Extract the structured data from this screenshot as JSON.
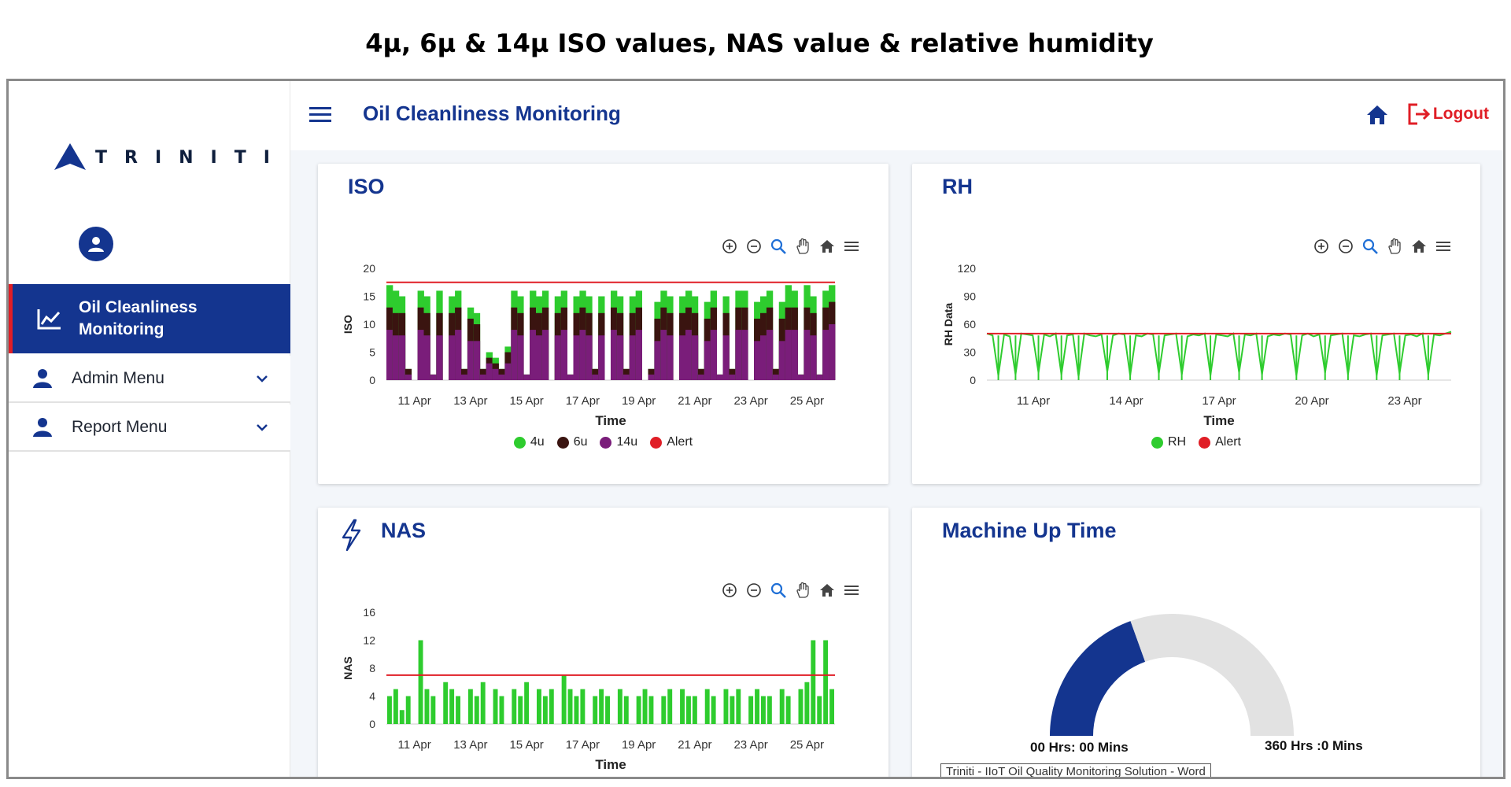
{
  "caption": "4µ, 6µ & 14µ ISO values, NAS value & relative humidity",
  "sidebar": {
    "logo_text": "TRINITI",
    "active_item": {
      "label": "Oil Cleanliness Monitoring",
      "icon": "line-chart-icon"
    },
    "items": [
      {
        "label": "Admin Menu",
        "icon": "person-icon"
      },
      {
        "label": "Report Menu",
        "icon": "person-icon"
      }
    ]
  },
  "header": {
    "title": "Oil Cleanliness Monitoring",
    "logout_label": "Logout"
  },
  "colors": {
    "brand_blue": "#14358f",
    "alert_red": "#e01e26",
    "green_4u": "#2ecc2e",
    "brown_6u": "#3a1410",
    "purple_14u": "#7a1d7a",
    "gauge_gray": "#e2e2e2"
  },
  "cards": {
    "iso": {
      "title": "ISO"
    },
    "rh": {
      "title": "RH"
    },
    "nas": {
      "title": "NAS"
    },
    "uptime": {
      "title": "Machine Up Time",
      "left_label": "00 Hrs: 00 Mins",
      "right_label": "360 Hrs :0 Mins",
      "tooltip": "Triniti - IIoT Oil Quality Monitoring Solution - Word",
      "fill_fraction": 0.39
    }
  },
  "chart_data": [
    {
      "id": "iso",
      "type": "area",
      "xlabel": "Time",
      "ylabel": "ISO",
      "x_tick_labels": [
        "11 Apr",
        "13 Apr",
        "15 Apr",
        "17 Apr",
        "19 Apr",
        "21 Apr",
        "23 Apr",
        "25 Apr"
      ],
      "y_tick_labels": [
        "0",
        "5",
        "10",
        "15",
        "20"
      ],
      "ylim": [
        0,
        20
      ],
      "legend": [
        "4u",
        "6u",
        "14u",
        "Alert"
      ],
      "series": [
        {
          "name": "4u",
          "color": "#2ecc2e",
          "values": [
            17,
            16,
            15,
            2,
            0,
            16,
            15,
            1,
            16,
            0,
            15,
            16,
            2,
            13,
            12,
            2,
            5,
            4,
            2,
            6,
            16,
            15,
            1,
            16,
            15,
            16,
            0,
            15,
            16,
            1,
            15,
            16,
            15,
            2,
            15,
            0,
            16,
            15,
            2,
            15,
            16,
            0,
            2,
            14,
            16,
            15,
            0,
            15,
            16,
            15,
            2,
            14,
            16,
            1,
            15,
            2,
            16,
            16,
            0,
            14,
            15,
            16,
            2,
            14,
            17,
            16,
            1,
            17,
            15,
            1,
            16,
            17
          ]
        },
        {
          "name": "6u",
          "color": "#3a1410",
          "values": [
            13,
            12,
            12,
            2,
            0,
            13,
            12,
            1,
            12,
            0,
            12,
            13,
            2,
            11,
            10,
            2,
            4,
            3,
            2,
            5,
            13,
            12,
            1,
            13,
            12,
            13,
            0,
            12,
            13,
            1,
            12,
            13,
            12,
            2,
            12,
            0,
            13,
            12,
            2,
            12,
            13,
            0,
            2,
            11,
            13,
            12,
            0,
            12,
            13,
            12,
            2,
            11,
            13,
            1,
            12,
            2,
            13,
            13,
            0,
            11,
            12,
            13,
            2,
            11,
            13,
            13,
            1,
            13,
            12,
            1,
            13,
            14
          ]
        },
        {
          "name": "14u",
          "color": "#7a1d7a",
          "values": [
            9,
            8,
            8,
            1,
            0,
            9,
            8,
            1,
            8,
            0,
            8,
            9,
            1,
            7,
            7,
            1,
            3,
            2,
            1,
            3,
            9,
            8,
            1,
            9,
            8,
            9,
            0,
            8,
            9,
            1,
            8,
            9,
            8,
            1,
            8,
            0,
            9,
            8,
            1,
            8,
            9,
            0,
            1,
            7,
            9,
            8,
            0,
            8,
            9,
            8,
            1,
            7,
            9,
            1,
            8,
            1,
            9,
            9,
            0,
            7,
            8,
            9,
            1,
            7,
            9,
            9,
            1,
            9,
            8,
            1,
            9,
            10
          ]
        },
        {
          "name": "Alert",
          "color": "#e01e26",
          "values": [
            17.5
          ]
        }
      ]
    },
    {
      "id": "rh",
      "type": "line",
      "xlabel": "Time",
      "ylabel": "RH Data",
      "x_tick_labels": [
        "11 Apr",
        "14 Apr",
        "17 Apr",
        "20 Apr",
        "23 Apr"
      ],
      "y_tick_labels": [
        "0",
        "30",
        "60",
        "90",
        "120"
      ],
      "ylim": [
        0,
        120
      ],
      "legend": [
        "RH",
        "Alert"
      ],
      "series": [
        {
          "name": "RH",
          "color": "#2ecc2e",
          "values": [
            50,
            48,
            5,
            49,
            47,
            6,
            50,
            49,
            48,
            8,
            49,
            47,
            50,
            6,
            48,
            49,
            4,
            50,
            48,
            47,
            49,
            9,
            48,
            50,
            49,
            5,
            48,
            47,
            50,
            49,
            7,
            48,
            49,
            50,
            6,
            47,
            49,
            48,
            50,
            5,
            49,
            48,
            47,
            50,
            8,
            49,
            48,
            50,
            6,
            47,
            49,
            48,
            50,
            49,
            5,
            48,
            50,
            47,
            49,
            8,
            48,
            49,
            50,
            6,
            48,
            47,
            49,
            50,
            5,
            48,
            49,
            50,
            7,
            48,
            49,
            47,
            50,
            6,
            49,
            48,
            50,
            52
          ]
        },
        {
          "name": "Alert",
          "color": "#e01e26",
          "values": [
            50
          ]
        }
      ]
    },
    {
      "id": "nas",
      "type": "bar",
      "xlabel": "Time",
      "ylabel": "NAS",
      "x_tick_labels": [
        "11 Apr",
        "13 Apr",
        "15 Apr",
        "17 Apr",
        "19 Apr",
        "21 Apr",
        "23 Apr",
        "25 Apr"
      ],
      "y_tick_labels": [
        "0",
        "4",
        "8",
        "12",
        "16"
      ],
      "ylim": [
        0,
        16
      ],
      "series": [
        {
          "name": "NAS",
          "color": "#2ecc2e",
          "values": [
            4,
            5,
            2,
            4,
            0,
            12,
            5,
            4,
            0,
            6,
            5,
            4,
            0,
            5,
            4,
            6,
            0,
            5,
            4,
            0,
            5,
            4,
            6,
            0,
            5,
            4,
            5,
            0,
            7,
            5,
            4,
            5,
            0,
            4,
            5,
            4,
            0,
            5,
            4,
            0,
            4,
            5,
            4,
            0,
            4,
            5,
            0,
            5,
            4,
            4,
            0,
            5,
            4,
            0,
            5,
            4,
            5,
            0,
            4,
            5,
            4,
            4,
            0,
            5,
            4,
            0,
            5,
            6,
            12,
            4,
            12,
            5
          ]
        },
        {
          "name": "Alert",
          "color": "#e01e26",
          "values": [
            7
          ]
        }
      ]
    }
  ]
}
